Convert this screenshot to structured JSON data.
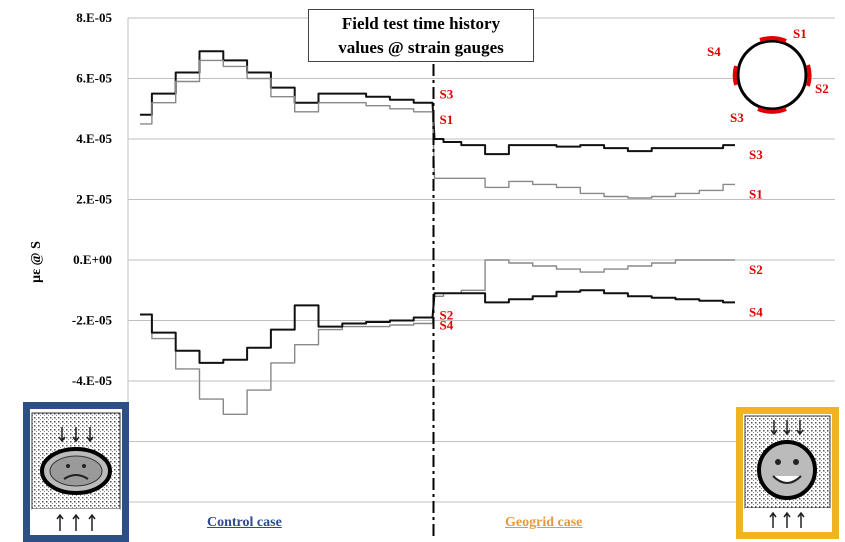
{
  "title": {
    "line1": "Field test time history",
    "line2": "values @ strain gauges"
  },
  "ylabel": "με @ S",
  "case_labels": {
    "control": "Control case",
    "geogrid": "Geogrid case"
  },
  "legend_gauges": [
    "S1",
    "S2",
    "S3",
    "S4"
  ],
  "colors": {
    "grid": "#bfbfbf",
    "dark_series": "#111111",
    "light_series": "#888888",
    "gauge_label": "#e00000",
    "control_frame": "#2c4f86",
    "geogrid_frame": "#f0b41c",
    "title_text": "#000000"
  },
  "icons": {
    "control_panel": "deformed-pipe-icon",
    "geogrid_panel": "happy-pipe-icon",
    "legend": "pipe-gauge-diagram-icon"
  },
  "chart_data": {
    "type": "line",
    "title": "Field test time history values @ strain gauges",
    "xlabel": "",
    "ylabel": "με @ S",
    "ylim": [
      -8e-05,
      8e-05
    ],
    "yticks": [
      "8.E-05",
      "6.E-05",
      "4.E-05",
      "2.E-05",
      "0.E+00",
      "-2.E-05",
      "-4.E-05"
    ],
    "ytick_values": [
      8e-05,
      6e-05,
      4e-05,
      2e-05,
      0,
      -2e-05,
      -4e-05
    ],
    "grid": true,
    "divider_x": 0.5,
    "x": [
      0,
      0.04,
      0.08,
      0.12,
      0.16,
      0.2,
      0.24,
      0.28,
      0.32,
      0.36,
      0.4,
      0.44,
      0.48,
      0.5,
      0.52,
      0.56,
      0.6,
      0.64,
      0.68,
      0.72,
      0.76,
      0.8,
      0.84,
      0.88,
      0.92,
      0.96,
      1.0
    ],
    "xrange": [
      0,
      1
    ],
    "series": [
      {
        "name": "S3",
        "style": "dark",
        "values": [
          4.8e-05,
          5.5e-05,
          6.2e-05,
          6.9e-05,
          6.6e-05,
          6.2e-05,
          5.7e-05,
          5.2e-05,
          5.5e-05,
          5.5e-05,
          5.4e-05,
          5.3e-05,
          5.2e-05,
          4e-05,
          3.9e-05,
          3.8e-05,
          3.5e-05,
          3.8e-05,
          3.8e-05,
          3.75e-05,
          3.8e-05,
          3.7e-05,
          3.6e-05,
          3.7e-05,
          3.7e-05,
          3.7e-05,
          3.8e-05
        ]
      },
      {
        "name": "S1",
        "style": "light",
        "values": [
          4.5e-05,
          5.2e-05,
          5.9e-05,
          6.6e-05,
          6.4e-05,
          6e-05,
          5.4e-05,
          4.9e-05,
          5.2e-05,
          5.2e-05,
          5.1e-05,
          5e-05,
          4.9e-05,
          2.7e-05,
          2.7e-05,
          2.7e-05,
          2.4e-05,
          2.6e-05,
          2.5e-05,
          2.4e-05,
          2.2e-05,
          2.1e-05,
          2.05e-05,
          2.1e-05,
          2.2e-05,
          2.3e-05,
          2.5e-05
        ]
      },
      {
        "name": "S2",
        "style": "light",
        "values": [
          -1.8e-05,
          -2.6e-05,
          -3.6e-05,
          -4.6e-05,
          -5.1e-05,
          -4.3e-05,
          -3.4e-05,
          -2.8e-05,
          -2.3e-05,
          -2.2e-05,
          -2.2e-05,
          -2.15e-05,
          -2.1e-05,
          -1.2e-05,
          -1.1e-05,
          -1e-05,
          0,
          -1e-06,
          -2e-06,
          -3e-06,
          -4e-06,
          -3e-06,
          -2e-06,
          -1e-06,
          0,
          0,
          0
        ]
      },
      {
        "name": "S4",
        "style": "dark",
        "values": [
          -1.8e-05,
          -2.4e-05,
          -3e-05,
          -3.4e-05,
          -3.3e-05,
          -2.9e-05,
          -2.3e-05,
          -1.5e-05,
          -2.2e-05,
          -2.1e-05,
          -2.05e-05,
          -2e-05,
          -1.9e-05,
          -1.1e-05,
          -1.1e-05,
          -1.1e-05,
          -1.4e-05,
          -1.3e-05,
          -1.2e-05,
          -1.05e-05,
          -1e-05,
          -1.1e-05,
          -1.2e-05,
          -1.25e-05,
          -1.3e-05,
          -1.35e-05,
          -1.4e-05
        ]
      }
    ]
  }
}
